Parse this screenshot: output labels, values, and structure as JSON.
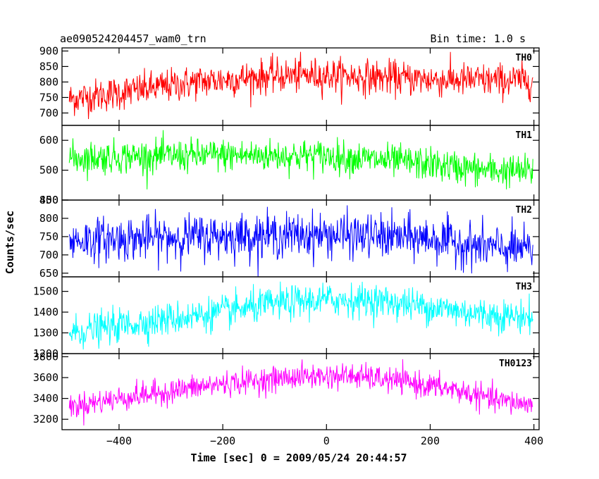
{
  "header": {
    "title": "ae090524204457_wam0_trn",
    "bin_time": "Bin time: 1.0 s"
  },
  "chart_data": {
    "type": "line",
    "xlabel": "Time [sec] 0 = 2009/05/24 20:44:57",
    "ylabel": "Counts/sec",
    "xlim": [
      -510,
      410
    ],
    "xticks": [
      -400,
      -200,
      0,
      200,
      400
    ],
    "x_tick_labels": [
      "−400",
      "−200",
      "0",
      "200",
      "400"
    ],
    "x_data_range": [
      -496,
      398
    ],
    "bin_time_s": 1.0,
    "grid": false,
    "panels": [
      {
        "name": "TH0",
        "color": "#ff0000",
        "ylim": [
          660,
          910
        ],
        "yticks": [
          700,
          750,
          800,
          850,
          900
        ],
        "y_tick_labels": [
          "700",
          "750",
          "800",
          "850",
          "900"
        ],
        "trend": {
          "x": [
            -496,
            -400,
            -250,
            -100,
            0,
            100,
            200,
            300,
            398
          ],
          "y": [
            745,
            765,
            800,
            820,
            822,
            815,
            808,
            805,
            805
          ]
        },
        "noise_halfwidth": 55
      },
      {
        "name": "TH1",
        "color": "#00ff00",
        "ylim": [
          400,
          650
        ],
        "yticks": [
          400,
          500,
          600
        ],
        "y_tick_labels": [
          "400",
          "500",
          "600"
        ],
        "trend": {
          "x": [
            -496,
            -400,
            -200,
            0,
            200,
            300,
            398
          ],
          "y": [
            540,
            545,
            550,
            548,
            520,
            500,
            495
          ]
        },
        "noise_halfwidth": 55
      },
      {
        "name": "TH2",
        "color": "#0000ff",
        "ylim": [
          640,
          850
        ],
        "yticks": [
          650,
          700,
          750,
          800,
          850
        ],
        "y_tick_labels": [
          "650",
          "700",
          "750",
          "800",
          "850"
        ],
        "trend": {
          "x": [
            -496,
            -200,
            0,
            200,
            300,
            398
          ],
          "y": [
            740,
            752,
            755,
            745,
            722,
            712
          ]
        },
        "noise_halfwidth": 60
      },
      {
        "name": "TH3",
        "color": "#00ffff",
        "ylim": [
          1200,
          1570
        ],
        "yticks": [
          1200,
          1300,
          1400,
          1500
        ],
        "y_tick_labels": [
          "1200",
          "1300",
          "1400",
          "1500"
        ],
        "trend": {
          "x": [
            -496,
            -400,
            -200,
            -100,
            0,
            100,
            200,
            300,
            398
          ],
          "y": [
            1300,
            1335,
            1400,
            1440,
            1460,
            1455,
            1425,
            1390,
            1375
          ]
        },
        "noise_halfwidth": 80
      },
      {
        "name": "TH0123",
        "color": "#ff00ff",
        "ylim": [
          3100,
          3830
        ],
        "yticks": [
          3200,
          3400,
          3600,
          3800
        ],
        "y_tick_labels": [
          "3200",
          "3400",
          "3600",
          "3800"
        ],
        "trend": {
          "x": [
            -496,
            -400,
            -200,
            -50,
            50,
            150,
            250,
            330,
            398
          ],
          "y": [
            3320,
            3400,
            3540,
            3610,
            3615,
            3560,
            3480,
            3380,
            3340
          ]
        },
        "noise_halfwidth": 120
      }
    ]
  }
}
